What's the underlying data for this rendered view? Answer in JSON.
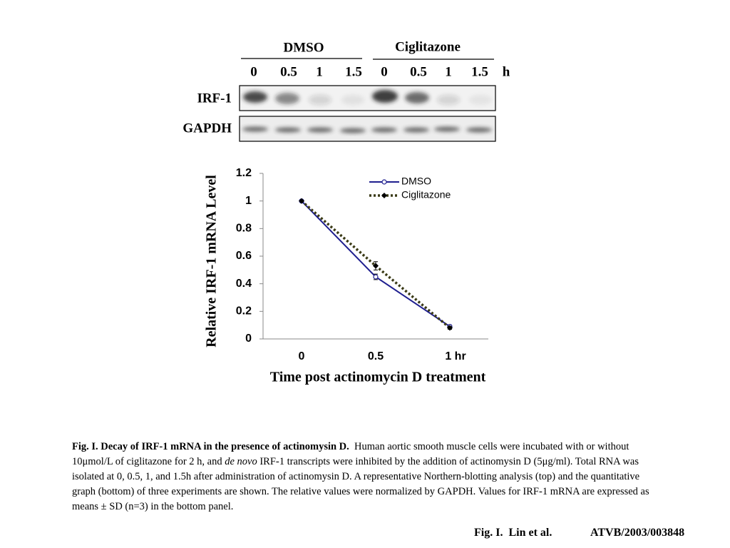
{
  "blot": {
    "groups": [
      "DMSO",
      "Ciglitazone"
    ],
    "times": [
      "0",
      "0.5",
      "1",
      "1.5",
      "0",
      "0.5",
      "1",
      "1.5"
    ],
    "unit": "h",
    "rows": [
      "IRF-1",
      "GAPDH"
    ]
  },
  "chart_data": {
    "type": "line",
    "y_label": "Relative IRF-1 mRNA Level",
    "x_label": "Time post actinomycin D treatment",
    "categories": [
      "0",
      "0.5",
      "1 hr"
    ],
    "series": [
      {
        "name": "DMSO",
        "color": "#1f1f8f",
        "values": [
          1,
          0.45,
          0.09
        ],
        "errors": [
          0,
          0.02,
          0.01
        ],
        "marker": "open-circle",
        "dash": false
      },
      {
        "name": "Ciglitazone",
        "color": "#3a3a16",
        "values": [
          1,
          0.53,
          0.08
        ],
        "errors": [
          0,
          0.03,
          0.01
        ],
        "marker": "diamond",
        "dash": true
      }
    ],
    "ylim": [
      0,
      1.2
    ],
    "yticks": [
      0,
      0.2,
      0.4,
      0.6,
      0.8,
      1,
      1.2
    ],
    "legend": "upper-right"
  },
  "caption": {
    "title": "Fig. I. Decay of IRF-1 mRNA in the presence of actinomysin D.",
    "text_1": "Human aortic smooth muscle cells were incubated with or without 10μmol/L of ciglitazone for 2 h, and",
    "italic": "de novo",
    "text_2": "IRF-1 transcripts were inhibited by the addition of actinomysin D (5μg/ml). Total RNA was isolated at 0, 0.5, 1, and 1.5h after administration of actinomysin D. A representative Northern-blotting analysis (top) and the quantitative graph (bottom) of three experiments are shown. The relative values were normalized by GAPDH. Values for IRF-1 mRNA are expressed as means ± SD (n=3) in the bottom panel."
  },
  "footer": {
    "figure": "Fig. I.  Lin et al.",
    "id": "ATVB/2003/003848"
  }
}
